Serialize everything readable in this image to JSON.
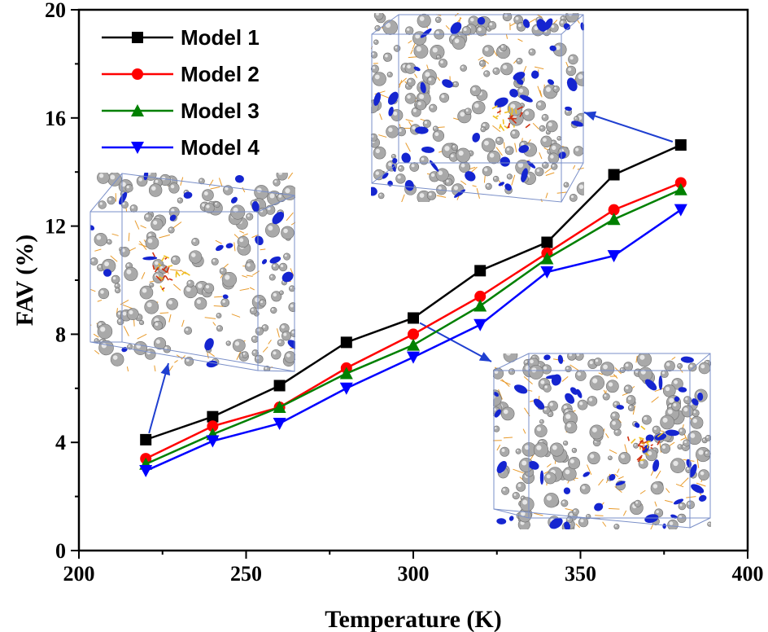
{
  "chart_data": {
    "type": "line",
    "x": [
      220,
      240,
      260,
      280,
      300,
      320,
      340,
      360,
      380
    ],
    "series": [
      {
        "name": "Model 1",
        "color": "#000000",
        "marker": "square",
        "values": [
          4.1,
          4.95,
          6.1,
          7.7,
          8.6,
          10.35,
          11.4,
          13.9,
          15.0
        ]
      },
      {
        "name": "Model 2",
        "color": "#ff0000",
        "marker": "circle",
        "values": [
          3.4,
          4.6,
          5.3,
          6.75,
          8.0,
          9.4,
          11.0,
          12.6,
          13.6
        ]
      },
      {
        "name": "Model 3",
        "color": "#008000",
        "marker": "triangle-up",
        "values": [
          3.2,
          4.3,
          5.3,
          6.55,
          7.6,
          9.05,
          10.8,
          12.25,
          13.35
        ]
      },
      {
        "name": "Model 4",
        "color": "#0000ff",
        "marker": "triangle-down",
        "values": [
          2.95,
          4.05,
          4.7,
          6.0,
          7.15,
          8.35,
          10.3,
          10.9,
          12.6
        ]
      }
    ],
    "xlabel": "Temperature (K)",
    "ylabel": "FAV (%)",
    "xlim": [
      200,
      400
    ],
    "ylim": [
      0,
      20
    ],
    "xticks": [
      200,
      250,
      300,
      350,
      400
    ],
    "yticks": [
      0,
      4,
      8,
      12,
      16,
      20
    ],
    "legend": "top-left",
    "grid": false,
    "insets": [
      {
        "name": "inset-low-temperature",
        "points_to": {
          "series": "Model 1",
          "x": 220
        }
      },
      {
        "name": "inset-mid-temperature",
        "points_to": {
          "series": "Model 1",
          "x": 300
        }
      },
      {
        "name": "inset-high-temperature",
        "points_to": {
          "series": "Model 1",
          "x": 380
        }
      }
    ],
    "inset_colors": {
      "frame": "#7a8fc8",
      "void": "#1525d0",
      "shell": "#a9a9a9",
      "chain": "#e89a2a",
      "core": "#d13010",
      "arrow": "#1f3fd0"
    }
  }
}
